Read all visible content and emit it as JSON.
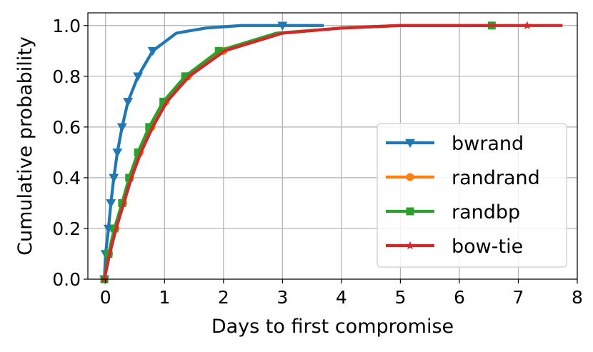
{
  "chart_data": {
    "type": "line",
    "xlabel": "Days to first compromise",
    "ylabel": "Cumulative probability",
    "xlim": [
      -0.3,
      8
    ],
    "ylim": [
      0,
      1.05
    ],
    "xticks": [
      "0",
      "1",
      "2",
      "3",
      "4",
      "5",
      "6",
      "7",
      "8"
    ],
    "yticks": [
      "0.0",
      "0.2",
      "0.4",
      "0.6",
      "0.8",
      "1.0"
    ],
    "grid": true,
    "legend_position": "lower-right",
    "series": [
      {
        "name": "bwrand",
        "color": "#1f77b4",
        "marker": "triangle-down",
        "x": [
          -0.02,
          0.0,
          0.05,
          0.09,
          0.14,
          0.2,
          0.28,
          0.38,
          0.55,
          0.8,
          1.2,
          1.7,
          2.3,
          3.0,
          3.7
        ],
        "y": [
          0.0,
          0.1,
          0.2,
          0.3,
          0.4,
          0.5,
          0.6,
          0.7,
          0.8,
          0.9,
          0.97,
          0.99,
          1.0,
          1.0,
          1.0
        ],
        "markers_x": [
          -0.02,
          0.0,
          0.05,
          0.09,
          0.14,
          0.2,
          0.28,
          0.38,
          0.55,
          0.8,
          3.0
        ],
        "markers_y": [
          0.0,
          0.1,
          0.2,
          0.3,
          0.4,
          0.5,
          0.6,
          0.7,
          0.8,
          0.9,
          1.0
        ]
      },
      {
        "name": "randrand",
        "color": "#ff7f0e",
        "marker": "circle",
        "x": [
          -0.02,
          0.06,
          0.17,
          0.3,
          0.42,
          0.58,
          0.78,
          1.02,
          1.4,
          2.0,
          3.0,
          4.0,
          5.0,
          6.55
        ],
        "y": [
          0.0,
          0.1,
          0.2,
          0.3,
          0.4,
          0.5,
          0.6,
          0.7,
          0.8,
          0.9,
          0.97,
          0.99,
          1.0,
          1.0
        ],
        "markers_x": [
          -0.02,
          0.06,
          0.17,
          0.3,
          0.42,
          0.58,
          0.78,
          1.02,
          1.4,
          2.0,
          6.55
        ],
        "markers_y": [
          0.0,
          0.1,
          0.2,
          0.3,
          0.4,
          0.5,
          0.6,
          0.7,
          0.8,
          0.9,
          1.0
        ]
      },
      {
        "name": "randbp",
        "color": "#2ca02c",
        "marker": "square",
        "x": [
          -0.02,
          0.05,
          0.15,
          0.28,
          0.4,
          0.55,
          0.74,
          0.98,
          1.35,
          1.92,
          2.9,
          4.0,
          5.0,
          6.55
        ],
        "y": [
          0.0,
          0.1,
          0.2,
          0.3,
          0.4,
          0.5,
          0.6,
          0.7,
          0.8,
          0.9,
          0.97,
          0.99,
          1.0,
          1.0
        ],
        "markers_x": [
          -0.02,
          0.05,
          0.15,
          0.28,
          0.4,
          0.55,
          0.74,
          0.98,
          1.35,
          1.92,
          6.55
        ],
        "markers_y": [
          0.0,
          0.1,
          0.2,
          0.3,
          0.4,
          0.5,
          0.6,
          0.7,
          0.8,
          0.9,
          1.0
        ]
      },
      {
        "name": "bow-tie",
        "color": "#d62728",
        "marker": "star",
        "x": [
          -0.02,
          0.07,
          0.18,
          0.31,
          0.44,
          0.6,
          0.8,
          1.04,
          1.42,
          2.02,
          3.0,
          4.0,
          5.0,
          6.0,
          7.15,
          7.75
        ],
        "y": [
          0.0,
          0.1,
          0.2,
          0.3,
          0.4,
          0.5,
          0.6,
          0.7,
          0.8,
          0.9,
          0.97,
          0.99,
          1.0,
          1.0,
          1.0,
          1.0
        ],
        "markers_x": [
          -0.02,
          7.15
        ],
        "markers_y": [
          0.0,
          1.0
        ]
      }
    ]
  }
}
